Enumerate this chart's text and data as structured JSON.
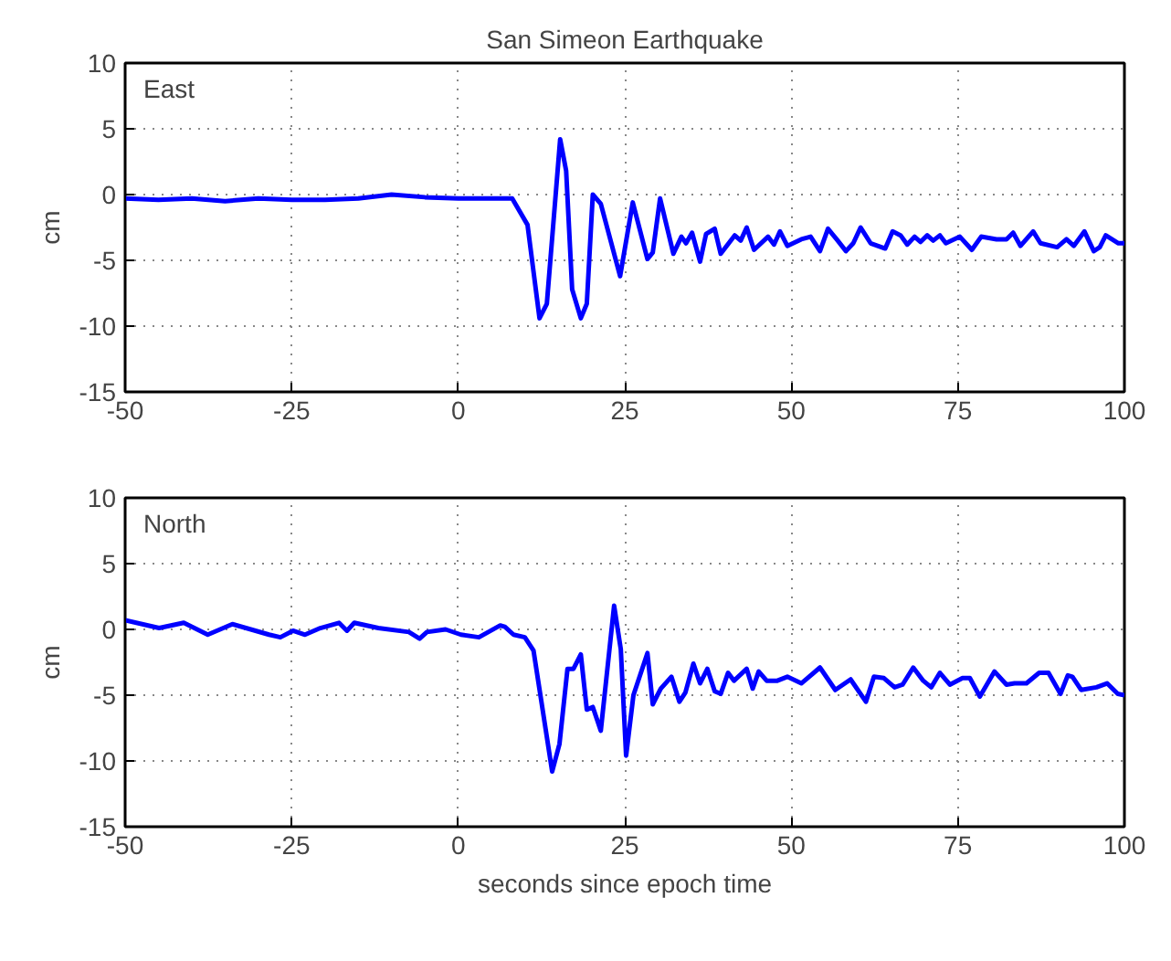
{
  "chart_data": [
    {
      "type": "line",
      "title": "San Simeon Earthquake",
      "ylabel": "cm",
      "annotations": [
        "East"
      ],
      "x": [
        -50,
        -45,
        -40,
        -35,
        -30,
        -25,
        -20,
        -15,
        -10,
        -5,
        0,
        5,
        8.1,
        10.4,
        12.2,
        13.3,
        15.3,
        16.2,
        17.1,
        18.4,
        19.3,
        20.2,
        21.4,
        24.3,
        26.2,
        28.4,
        29.2,
        30.3,
        32.3,
        33.5,
        34.2,
        35.1,
        36.3,
        37.2,
        38.5,
        39.4,
        41.5,
        42.4,
        43.3,
        44.4,
        46.5,
        47.4,
        48.3,
        49.4,
        51.5,
        52.9,
        54.3,
        55.5,
        56.8,
        58.2,
        59.3,
        60.4,
        61.9,
        64.1,
        65.2,
        66.4,
        67.4,
        68.5,
        69.4,
        70.4,
        71.3,
        72.3,
        73.2,
        75.3,
        77.1,
        78.5,
        80.8,
        82.3,
        83.3,
        84.4,
        86.3,
        87.4,
        89.9,
        91.3,
        92.4,
        94.0,
        95.4,
        96.3,
        97.2,
        99.1,
        100
      ],
      "series": [
        {
          "color": "#0000ff",
          "values": [
            -0.3,
            -0.4,
            -0.3,
            -0.5,
            -0.3,
            -0.4,
            -0.4,
            -0.3,
            0.0,
            -0.2,
            -0.3,
            -0.3,
            -0.3,
            -2.3,
            -9.4,
            -8.3,
            4.2,
            1.8,
            -7.2,
            -9.4,
            -8.3,
            0.0,
            -0.7,
            -6.2,
            -0.6,
            -4.9,
            -4.4,
            -0.3,
            -4.5,
            -3.2,
            -3.7,
            -2.9,
            -5.1,
            -3.0,
            -2.6,
            -4.5,
            -3.1,
            -3.5,
            -2.5,
            -4.2,
            -3.2,
            -3.8,
            -2.8,
            -3.9,
            -3.4,
            -3.2,
            -4.3,
            -2.6,
            -3.4,
            -4.3,
            -3.7,
            -2.5,
            -3.7,
            -4.1,
            -2.8,
            -3.1,
            -3.8,
            -3.2,
            -3.6,
            -3.1,
            -3.5,
            -3.1,
            -3.7,
            -3.2,
            -4.2,
            -3.2,
            -3.4,
            -3.4,
            -2.9,
            -3.9,
            -2.8,
            -3.7,
            -4.0,
            -3.4,
            -3.9,
            -2.8,
            -4.3,
            -4.0,
            -3.1,
            -3.7,
            -3.7
          ]
        }
      ],
      "xlim": [
        -50,
        100
      ],
      "xticks": [
        -50,
        -25,
        0,
        25,
        50,
        75,
        100
      ],
      "ylim": [
        -15,
        10
      ],
      "yticks": [
        -15,
        -10,
        -5,
        0,
        5,
        10
      ],
      "grid": true,
      "line_style": "solid",
      "marker": "none"
    },
    {
      "type": "line",
      "xlabel": "seconds since epoch time",
      "ylabel": "cm",
      "annotations": [
        "North"
      ],
      "x": [
        -50,
        -44.9,
        -41.2,
        -37.6,
        -33.9,
        -28.4,
        -26.7,
        -24.8,
        -23,
        -20.7,
        -17.9,
        -16.7,
        -15.6,
        -12,
        -7.4,
        -5.8,
        -4.7,
        -1.9,
        0.4,
        3.1,
        6.3,
        7,
        8.3,
        10,
        11.3,
        14.1,
        15.2,
        16.4,
        17.3,
        18.4,
        19.3,
        20.2,
        21.4,
        23.4,
        24.4,
        25.2,
        26.3,
        28.4,
        29.2,
        30.4,
        32,
        33.2,
        34.1,
        35.3,
        36.3,
        37.4,
        38.5,
        39.4,
        40.5,
        41.4,
        43.3,
        44.2,
        45.1,
        46.3,
        47.9,
        49.4,
        51.5,
        54.3,
        56.6,
        58.9,
        61.2,
        62.4,
        63.9,
        65.5,
        66.7,
        68.3,
        69.8,
        71,
        72.3,
        73.8,
        75.7,
        76.8,
        78.3,
        80.5,
        82.3,
        83.5,
        85.3,
        87.2,
        88.6,
        90.4,
        91.5,
        92.2,
        93.5,
        95.8,
        97.4,
        99,
        100
      ],
      "series": [
        {
          "color": "#0000ff",
          "values": [
            0.7,
            0.1,
            0.5,
            -0.4,
            0.4,
            -0.4,
            -0.6,
            -0.1,
            -0.4,
            0.1,
            0.5,
            -0.1,
            0.5,
            0.1,
            -0.2,
            -0.7,
            -0.2,
            0.0,
            -0.4,
            -0.6,
            0.3,
            0.2,
            -0.4,
            -0.6,
            -1.6,
            -10.8,
            -8.7,
            -3.0,
            -3.0,
            -1.9,
            -6.1,
            -5.9,
            -7.7,
            1.8,
            -1.5,
            -9.6,
            -5.0,
            -1.8,
            -5.7,
            -4.5,
            -3.6,
            -5.5,
            -4.8,
            -2.6,
            -4.1,
            -3.0,
            -4.7,
            -4.9,
            -3.3,
            -3.9,
            -3.0,
            -4.5,
            -3.2,
            -3.9,
            -3.9,
            -3.6,
            -4.1,
            -2.9,
            -4.6,
            -3.8,
            -5.5,
            -3.6,
            -3.7,
            -4.4,
            -4.2,
            -2.9,
            -3.9,
            -4.4,
            -3.3,
            -4.2,
            -3.7,
            -3.7,
            -5.1,
            -3.2,
            -4.2,
            -4.1,
            -4.1,
            -3.3,
            -3.3,
            -4.9,
            -3.5,
            -3.6,
            -4.6,
            -4.4,
            -4.1,
            -4.9,
            -5.0
          ]
        }
      ],
      "xlim": [
        -50,
        100
      ],
      "xticks": [
        -50,
        -25,
        0,
        25,
        50,
        75,
        100
      ],
      "ylim": [
        -15,
        10
      ],
      "yticks": [
        -15,
        -10,
        -5,
        0,
        5,
        10
      ],
      "grid": true,
      "line_style": "solid",
      "marker": "none"
    }
  ]
}
